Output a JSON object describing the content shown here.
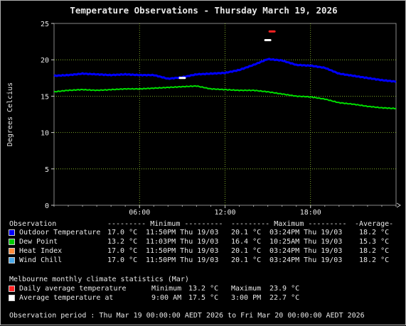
{
  "title": "Temperature Observations - Thursday March 19, 2026",
  "chart_data": {
    "type": "line",
    "title": "Temperature Observations - Thursday March 19, 2026",
    "ylabel": "Degrees Celcius",
    "xlabel": "",
    "ylim": [
      0,
      25
    ],
    "yticks": [
      "0",
      "5",
      "10",
      "15",
      "20",
      "25"
    ],
    "xlim_hours": [
      0,
      24
    ],
    "xticks": [
      {
        "hour": 6,
        "label": "06:00"
      },
      {
        "hour": 12,
        "label": "12:00"
      },
      {
        "hour": 18,
        "label": "18:00"
      }
    ],
    "grid": true,
    "series": [
      {
        "name": "Outdoor Temperature",
        "color": "#0000ff",
        "hours": [
          0,
          1,
          2,
          3,
          4,
          5,
          6,
          7,
          8,
          9,
          10,
          11,
          12,
          13,
          14,
          15,
          16,
          17,
          18,
          19,
          20,
          21,
          22,
          23,
          24
        ],
        "values": [
          17.8,
          17.9,
          18.1,
          18.0,
          17.9,
          18.0,
          17.9,
          17.9,
          17.4,
          17.6,
          18.0,
          18.1,
          18.2,
          18.6,
          19.3,
          20.1,
          19.9,
          19.3,
          19.2,
          18.9,
          18.1,
          17.8,
          17.5,
          17.2,
          17.0
        ]
      },
      {
        "name": "Dew Point",
        "color": "#00dd00",
        "hours": [
          0,
          1,
          2,
          3,
          4,
          5,
          6,
          7,
          8,
          9,
          10,
          11,
          12,
          13,
          14,
          15,
          16,
          17,
          18,
          19,
          20,
          21,
          22,
          23,
          24
        ],
        "values": [
          15.6,
          15.8,
          15.9,
          15.8,
          15.9,
          16.0,
          16.0,
          16.1,
          16.2,
          16.3,
          16.4,
          16.0,
          15.9,
          15.8,
          15.8,
          15.6,
          15.3,
          15.0,
          14.9,
          14.6,
          14.1,
          13.9,
          13.6,
          13.4,
          13.3
        ]
      }
    ],
    "markers": [
      {
        "name": "Average temperature at",
        "hour": 9.0,
        "value": 17.5,
        "color": "#ffffff"
      },
      {
        "name": "Average temperature at",
        "hour": 15.0,
        "value": 22.7,
        "color": "#ffffff"
      },
      {
        "name": "Daily average temperature maximum",
        "hour": 15.3,
        "value": 23.9,
        "color": "#ff2222"
      }
    ]
  },
  "legend": {
    "header": {
      "observation": "Observation",
      "minimum": "--------- Minimum ---------",
      "maximum": "--------- Maximum ---------",
      "average": "-Average-"
    },
    "rows": [
      {
        "color": "#0000ff",
        "name": "Outdoor Temperature",
        "min_val": "17.0 °C",
        "min_time": "11:50PM Thu 19/03",
        "max_val": "20.1 °C",
        "max_time": "03:24PM Thu 19/03",
        "avg": "18.2 °C"
      },
      {
        "color": "#00cc00",
        "name": "Dew Point",
        "min_val": "13.2 °C",
        "min_time": "11:03PM Thu 19/03",
        "max_val": "16.4 °C",
        "max_time": "10:25AM Thu 19/03",
        "avg": "15.3 °C"
      },
      {
        "color": "#ff8c3c",
        "name": "Heat Index",
        "min_val": "17.0 °C",
        "min_time": "11:50PM Thu 19/03",
        "max_val": "20.1 °C",
        "max_time": "03:24PM Thu 19/03",
        "avg": "18.2 °C"
      },
      {
        "color": "#4aa8e8",
        "name": "Wind Chill",
        "min_val": "17.0 °C",
        "min_time": "11:50PM Thu 19/03",
        "max_val": "20.1 °C",
        "max_time": "03:24PM Thu 19/03",
        "avg": "18.2 °C"
      }
    ]
  },
  "climate": {
    "heading": "Melbourne monthly climate statistics (Mar)",
    "rows": [
      {
        "color": "#ff2222",
        "label": "Daily average temperature",
        "c1": "Minimum",
        "v1": "13.2 °C",
        "c2": "Maximum",
        "v2": "23.9 °C"
      },
      {
        "color": "#ffffff",
        "label": "Average temperature at",
        "c1": "9:00 AM",
        "v1": "17.5 °C",
        "c2": "3:00 PM",
        "v2": "22.7 °C"
      }
    ]
  },
  "period": "Observation period : Thu Mar 19 00:00:00 AEDT 2026 to Fri Mar 20 00:00:00 AEDT 2026"
}
